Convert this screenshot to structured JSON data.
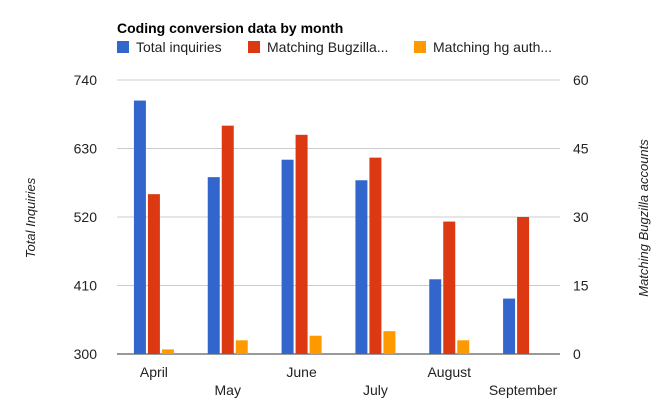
{
  "chart_data": {
    "type": "bar",
    "title": "Coding conversion data by month",
    "categories": [
      "April",
      "May",
      "June",
      "July",
      "August",
      "September"
    ],
    "series": [
      {
        "name": "Total inquiries",
        "axis": "left",
        "color": "#3366cc",
        "values": [
          707,
          584,
          612,
          579,
          420,
          389
        ]
      },
      {
        "name": "Matching Bugzilla...",
        "axis": "right",
        "color": "#dc3912",
        "values": [
          35,
          50,
          48,
          43,
          29,
          30
        ]
      },
      {
        "name": "Matching hg auth...",
        "axis": "right",
        "color": "#ff9900",
        "values": [
          1,
          3,
          4,
          5,
          3,
          0
        ]
      }
    ],
    "ylabel": "Total Inquiries",
    "y2label": "Matching Bugzilla accounts",
    "ylim": [
      300,
      740
    ],
    "y2lim": [
      0,
      60
    ],
    "yticks": [
      "740",
      "630",
      "520",
      "410",
      "300"
    ],
    "y2ticks": [
      "60",
      "45",
      "30",
      "15",
      "0"
    ],
    "grid": true,
    "legend": "top-left"
  }
}
